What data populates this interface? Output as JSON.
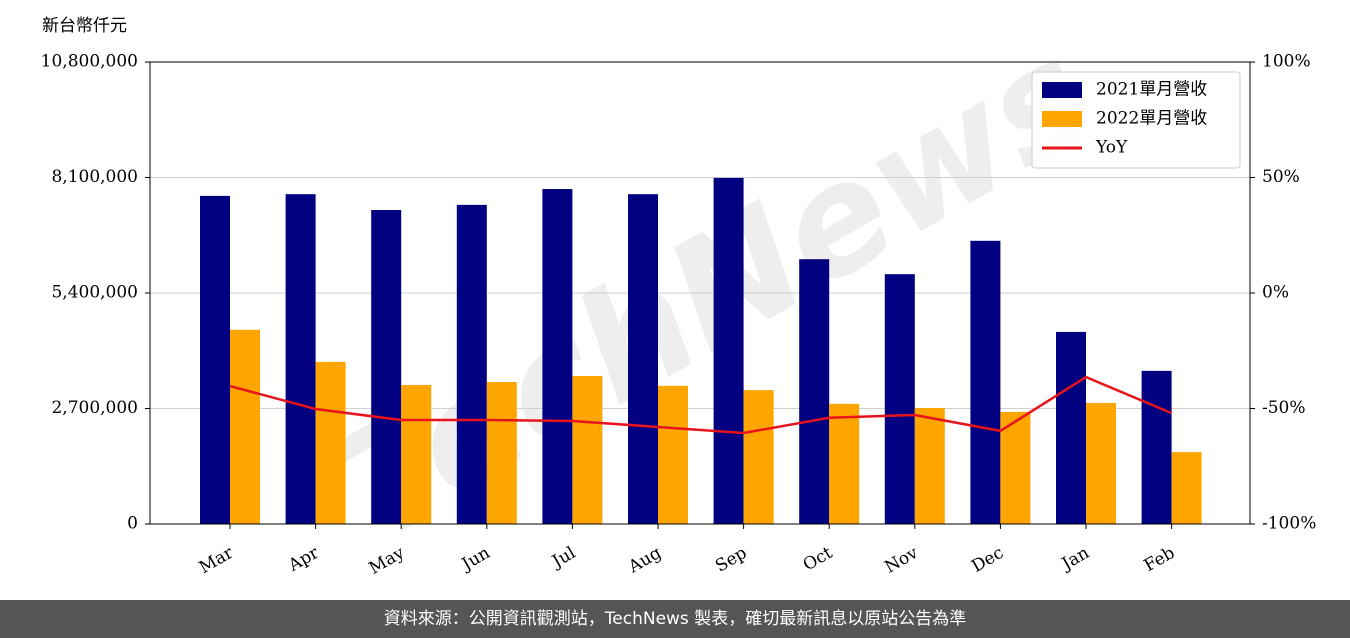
{
  "chart_data": {
    "type": "bar_line",
    "y_label": "新台幣仟元",
    "categories": [
      "Mar",
      "Apr",
      "May",
      "Jun",
      "Jul",
      "Aug",
      "Sep",
      "Oct",
      "Nov",
      "Dec",
      "Jan",
      "Feb"
    ],
    "series": [
      {
        "name": "2021單月營收",
        "color": "#000080",
        "values": [
          7670000,
          7710000,
          7340000,
          7460000,
          7830000,
          7710000,
          8090000,
          6190000,
          5840000,
          6620000,
          4490000,
          3580000
        ]
      },
      {
        "name": "2022單月營收",
        "color": "#ffa500",
        "values": [
          4540000,
          3790000,
          3250000,
          3320000,
          3460000,
          3230000,
          3130000,
          2810000,
          2710000,
          2620000,
          2830000,
          1680000
        ]
      },
      {
        "name": "YoY",
        "color": "#e8141b",
        "axis": "y2",
        "values": [
          -40.3,
          -50.2,
          -55.0,
          -55.0,
          -55.4,
          -58.0,
          -60.6,
          -54.0,
          -52.8,
          -59.7,
          -36.4,
          -52.0
        ]
      }
    ],
    "ylim": [
      0,
      10800000
    ],
    "yticks": [
      0,
      {
        "value": 2700000,
        "label": "2,700,000"
      },
      {
        "value": 5400000,
        "label": "5,400,000"
      },
      {
        "value": 8100000,
        "label": "8,100,000"
      },
      {
        "value": 10800000,
        "label": "10,800,000"
      }
    ],
    "y2lim": [
      -100,
      100
    ],
    "y2ticks": [
      {
        "value": -100,
        "label": "-100%"
      },
      {
        "value": -50,
        "label": "-50%"
      },
      {
        "value": 0,
        "label": "0%"
      },
      {
        "value": 50,
        "label": "50%"
      },
      {
        "value": 100,
        "label": "100%"
      }
    ],
    "grid": true,
    "legend": "upper right",
    "watermark": "TechNews",
    "footer": "資料來源：公開資訊觀測站，TechNews 製表，確切最新訊息以原站公告為準"
  }
}
